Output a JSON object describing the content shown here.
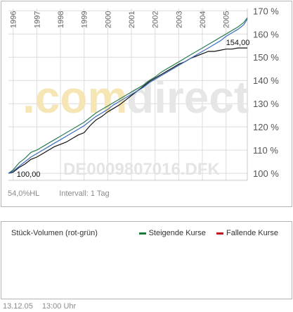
{
  "chart_data": {
    "type": "line",
    "title": "",
    "xlabel": "",
    "ylabel": "",
    "x_tick_labels": [
      "1996",
      "1997",
      "1998",
      "1999",
      "2000",
      "2001",
      "2002",
      "2003",
      "2004",
      "2005"
    ],
    "y_tick_labels": [
      "100 %",
      "110 %",
      "120 %",
      "130 %",
      "140 %",
      "150 %",
      "160 %",
      "170 %"
    ],
    "y_ticks": [
      100,
      110,
      120,
      130,
      140,
      150,
      160,
      170
    ],
    "ylim": [
      97,
      171
    ],
    "xlim": [
      1995.8,
      2005.9
    ],
    "grid": true,
    "x": [
      1995.8,
      1996.0,
      1996.25,
      1996.5,
      1996.75,
      1997.0,
      1997.25,
      1997.5,
      1997.75,
      1998.0,
      1998.25,
      1998.5,
      1998.75,
      1999.0,
      1999.25,
      1999.5,
      1999.75,
      2000.0,
      2000.25,
      2000.5,
      2000.75,
      2001.0,
      2001.25,
      2001.5,
      2001.75,
      2002.0,
      2002.25,
      2002.5,
      2002.75,
      2003.0,
      2003.25,
      2003.5,
      2003.75,
      2004.0,
      2004.25,
      2004.5,
      2004.75,
      2005.0,
      2005.25,
      2005.5,
      2005.75,
      2005.9
    ],
    "series": [
      {
        "color": "#111111",
        "values": [
          100.0,
          100.5,
          102.5,
          104.0,
          106.0,
          107.0,
          108.5,
          110.0,
          111.5,
          112.5,
          113.5,
          115.0,
          116.5,
          117.5,
          120.5,
          123.0,
          124.5,
          126.5,
          128.0,
          129.5,
          131.5,
          133.5,
          135.5,
          137.5,
          139.5,
          141.0,
          142.5,
          144.0,
          145.5,
          147.0,
          148.0,
          149.5,
          150.5,
          151.5,
          152.5,
          152.5,
          153.0,
          153.5,
          153.5,
          154.0,
          154.0,
          154.0
        ]
      },
      {
        "color": "#2e7d55",
        "values": [
          100.0,
          101.5,
          104.5,
          106.5,
          109.0,
          110.0,
          111.5,
          113.0,
          114.5,
          116.0,
          117.5,
          119.0,
          120.5,
          122.0,
          124.0,
          126.0,
          127.5,
          129.0,
          130.5,
          132.0,
          133.5,
          135.0,
          136.5,
          138.0,
          140.0,
          141.5,
          143.5,
          145.0,
          146.5,
          148.0,
          149.5,
          151.0,
          152.5,
          154.0,
          155.5,
          157.0,
          158.5,
          160.0,
          161.5,
          163.0,
          165.0,
          167.0
        ]
      },
      {
        "color": "#3b6cc2",
        "values": [
          100.0,
          101.0,
          103.0,
          105.0,
          107.0,
          108.5,
          110.0,
          111.5,
          113.0,
          114.5,
          116.0,
          117.5,
          119.0,
          120.5,
          122.5,
          124.5,
          126.0,
          127.5,
          129.5,
          131.0,
          132.5,
          134.0,
          135.5,
          137.0,
          139.0,
          140.5,
          142.0,
          143.5,
          145.0,
          146.5,
          148.0,
          149.5,
          151.0,
          152.5,
          154.0,
          155.5,
          157.0,
          159.0,
          160.5,
          162.0,
          164.0,
          166.5
        ]
      }
    ],
    "annotations": [
      {
        "text": "154,00",
        "x": 2005.0,
        "y": 154.0
      },
      {
        "text": "100,00",
        "x": 1996.15,
        "y": 100.0
      }
    ]
  },
  "watermark": "DE0009807016.DFK",
  "brand_watermark": {
    "left": "com",
    "right": "direct",
    "color_left": "#f7e6b5",
    "color_right": "#e6e6e6"
  },
  "info": {
    "hl": "54,0%HL",
    "interval": "Intervall: 1 Tag"
  },
  "volume": {
    "title": "Stück-Volumen (rot-grün)",
    "legend": [
      {
        "label": "Steigende Kurse",
        "color": "#1c7a3a"
      },
      {
        "label": "Fallende Kurse",
        "color": "#c0141c"
      }
    ]
  },
  "footer": {
    "date": "13.12.05",
    "time": "13:00 Uhr"
  }
}
